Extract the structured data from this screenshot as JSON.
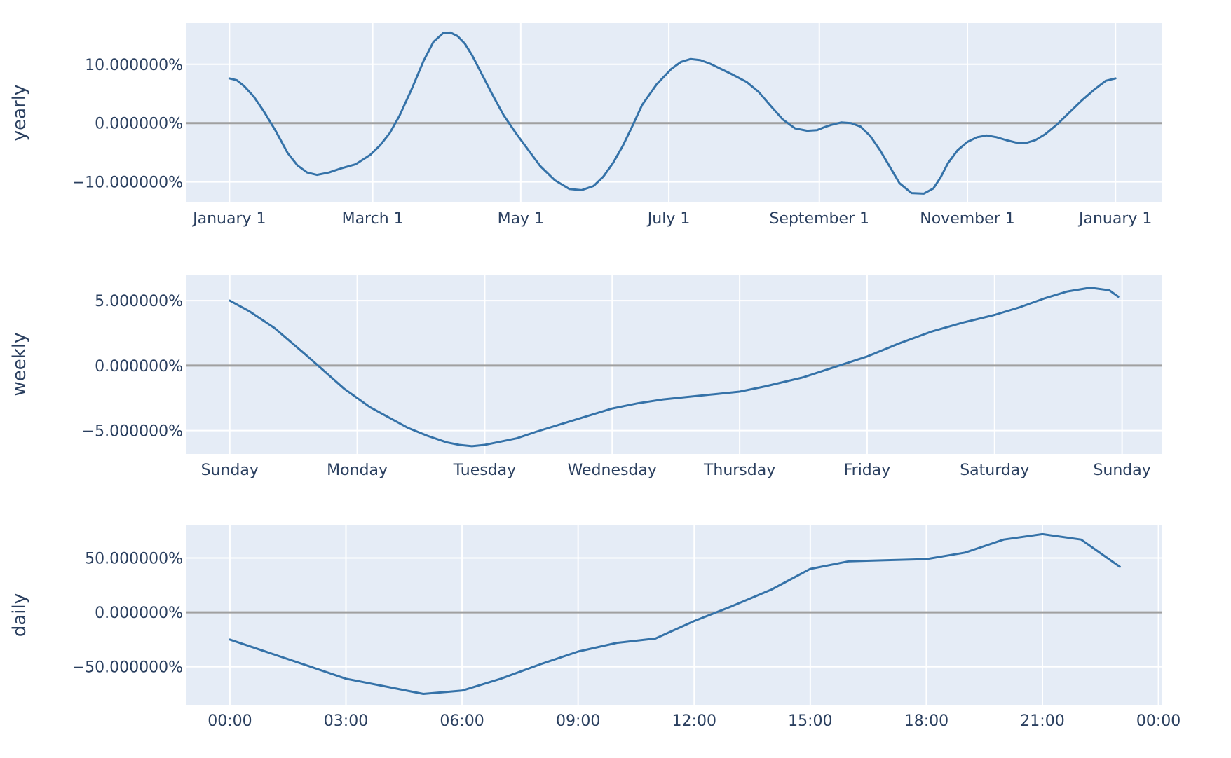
{
  "chart_data": [
    {
      "type": "line",
      "ylabel": "yearly",
      "x_tick_labels": [
        "January  1",
        "March  1",
        "May  1",
        "July  1",
        "September  1",
        "November  1",
        "January  1"
      ],
      "x_ticks": [
        0,
        59,
        120,
        181,
        243,
        304,
        365
      ],
      "xlim": [
        -18,
        384
      ],
      "y_ticks": [
        10,
        0,
        -10
      ],
      "y_tick_labels": [
        "10.000000%",
        "0.000000%",
        "−10.000000%"
      ],
      "ylim": [
        -13.5,
        17
      ],
      "grid": true,
      "line_color": "#3572a8",
      "zero_line_color": "#a0a0a0",
      "series": [
        {
          "x": [
            0,
            3,
            6,
            10,
            14,
            19,
            24,
            28,
            32,
            36,
            41,
            46,
            52,
            58,
            62,
            66,
            70,
            75,
            80,
            84,
            88,
            91,
            94,
            97,
            100,
            104,
            108,
            113,
            118,
            123,
            128,
            134,
            140,
            145,
            150,
            154,
            158,
            162,
            166,
            170,
            176,
            182,
            186,
            190,
            194,
            198,
            202,
            207,
            213,
            218,
            223,
            228,
            233,
            238,
            242,
            245,
            248,
            252,
            256,
            260,
            264,
            268,
            272,
            276,
            281,
            286,
            290,
            293,
            296,
            300,
            304,
            308,
            312,
            316,
            320,
            324,
            328,
            332,
            336,
            341,
            346,
            351,
            356,
            361,
            365
          ],
          "y": [
            7.6,
            7.3,
            6.3,
            4.5,
            2.1,
            -1.3,
            -5.1,
            -7.2,
            -8.4,
            -8.8,
            -8.4,
            -7.7,
            -7.0,
            -5.4,
            -3.8,
            -1.7,
            1.2,
            5.7,
            10.6,
            13.8,
            15.3,
            15.4,
            14.8,
            13.5,
            11.5,
            8.3,
            5.1,
            1.3,
            -1.7,
            -4.5,
            -7.3,
            -9.7,
            -11.2,
            -11.4,
            -10.7,
            -9.1,
            -6.8,
            -3.9,
            -0.5,
            3.1,
            6.6,
            9.2,
            10.4,
            10.9,
            10.7,
            10.1,
            9.3,
            8.3,
            7.0,
            5.3,
            2.9,
            0.6,
            -0.9,
            -1.3,
            -1.2,
            -0.7,
            -0.3,
            0.1,
            0.0,
            -0.6,
            -2.2,
            -4.6,
            -7.4,
            -10.2,
            -11.9,
            -12.0,
            -11.1,
            -9.2,
            -6.8,
            -4.6,
            -3.2,
            -2.4,
            -2.1,
            -2.4,
            -2.9,
            -3.3,
            -3.4,
            -2.9,
            -1.9,
            -0.2,
            1.8,
            3.8,
            5.6,
            7.2,
            7.6
          ]
        }
      ]
    },
    {
      "type": "line",
      "ylabel": "weekly",
      "x_tick_labels": [
        "Sunday",
        "Monday",
        "Tuesday",
        "Wednesday",
        "Thursday",
        "Friday",
        "Saturday",
        "Sunday"
      ],
      "x_ticks": [
        0,
        1,
        2,
        3,
        4,
        5,
        6,
        7
      ],
      "xlim": [
        -0.345,
        7.31
      ],
      "y_ticks": [
        5,
        0,
        -5
      ],
      "y_tick_labels": [
        "5.000000%",
        "0.000000%",
        "−5.000000%"
      ],
      "ylim": [
        -6.8,
        7
      ],
      "grid": true,
      "line_color": "#3572a8",
      "zero_line_color": "#a0a0a0",
      "series": [
        {
          "x": [
            0,
            0.15,
            0.35,
            0.6,
            0.9,
            1.1,
            1.25,
            1.4,
            1.55,
            1.7,
            1.8,
            1.9,
            2.0,
            2.1,
            2.25,
            2.4,
            2.6,
            2.8,
            3.0,
            3.2,
            3.4,
            3.6,
            3.8,
            4.0,
            4.2,
            4.5,
            4.75,
            5.0,
            5.25,
            5.5,
            5.75,
            6.0,
            6.2,
            6.4,
            6.57,
            6.75,
            6.9,
            6.97
          ],
          "y": [
            5.0,
            4.2,
            2.9,
            0.8,
            -1.8,
            -3.2,
            -4.0,
            -4.8,
            -5.4,
            -5.9,
            -6.1,
            -6.2,
            -6.1,
            -5.9,
            -5.6,
            -5.1,
            -4.5,
            -3.9,
            -3.3,
            -2.9,
            -2.6,
            -2.4,
            -2.2,
            -2.0,
            -1.6,
            -0.9,
            -0.1,
            0.7,
            1.7,
            2.6,
            3.3,
            3.9,
            4.5,
            5.2,
            5.7,
            6.0,
            5.8,
            5.3
          ]
        }
      ]
    },
    {
      "type": "line",
      "ylabel": "daily",
      "x_tick_labels": [
        "00:00",
        "03:00",
        "06:00",
        "09:00",
        "12:00",
        "15:00",
        "18:00",
        "21:00",
        "00:00"
      ],
      "x_ticks": [
        0,
        3,
        6,
        9,
        12,
        15,
        18,
        21,
        24
      ],
      "xlim": [
        -1.14,
        24.08
      ],
      "y_ticks": [
        50,
        0,
        -50
      ],
      "y_tick_labels": [
        "50.000000%",
        "0.000000%",
        "−50.000000%"
      ],
      "ylim": [
        -85,
        80
      ],
      "grid": true,
      "line_color": "#3572a8",
      "zero_line_color": "#a0a0a0",
      "series": [
        {
          "x": [
            0,
            1,
            2,
            3,
            4,
            5,
            6,
            7,
            8,
            9,
            10,
            11,
            12,
            13,
            14,
            15,
            16,
            17,
            18,
            19,
            20,
            21,
            22,
            23
          ],
          "y": [
            -25,
            -37,
            -49,
            -61,
            -68,
            -75,
            -72,
            -61,
            -48,
            -36,
            -28,
            -24,
            -8,
            6,
            21,
            40,
            47,
            48,
            49,
            55,
            67,
            72,
            67,
            42
          ]
        }
      ]
    }
  ]
}
